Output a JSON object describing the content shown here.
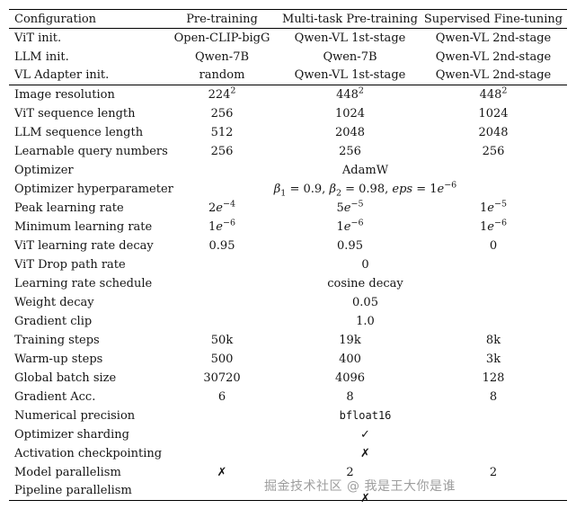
{
  "page": {
    "background": "#ffffff",
    "text_color": "#141414",
    "rule_color": "#000000"
  },
  "watermark": {
    "text": "掘金技术社区 @ 我是王大你是谁",
    "color": "#9e9e9e"
  },
  "table": {
    "headers": [
      "Configuration",
      "Pre-training",
      "Multi-task Pre-training",
      "Supervised Fine-tuning"
    ],
    "rows": [
      {
        "label": "ViT init.",
        "cells": [
          "Open-CLIP-bigG",
          "Qwen-VL 1st-stage",
          "Qwen-VL 2nd-stage"
        ]
      },
      {
        "label": "LLM init.",
        "cells": [
          "Qwen-7B",
          "Qwen-7B",
          "Qwen-VL 2nd-stage"
        ]
      },
      {
        "label": "VL Adapter init.",
        "cells": [
          "random",
          "Qwen-VL 1st-stage",
          "Qwen-VL 2nd-stage"
        ],
        "ruleAfter": true
      },
      {
        "label": "Image resolution",
        "cells": [
          [
            {
              "t": "224"
            },
            {
              "t": "2",
              "sup": true
            }
          ],
          [
            {
              "t": "448"
            },
            {
              "t": "2",
              "sup": true
            }
          ],
          [
            {
              "t": "448"
            },
            {
              "t": "2",
              "sup": true
            }
          ]
        ]
      },
      {
        "label": "ViT sequence length",
        "cells": [
          "256",
          "1024",
          "1024"
        ]
      },
      {
        "label": "LLM sequence length",
        "cells": [
          "512",
          "2048",
          "2048"
        ]
      },
      {
        "label": "Learnable query numbers",
        "cells": [
          "256",
          "256",
          "256"
        ]
      },
      {
        "label": "Optimizer",
        "span": "AdamW"
      },
      {
        "label": "Optimizer hyperparameter",
        "span": [
          {
            "t": "β",
            "i": true
          },
          {
            "t": "1",
            "sub": true
          },
          {
            "t": " = 0.9, "
          },
          {
            "t": "β",
            "i": true
          },
          {
            "t": "2",
            "sub": true
          },
          {
            "t": " = 0.98, "
          },
          {
            "t": "eps",
            "i": true
          },
          {
            "t": " = 1"
          },
          {
            "t": "e",
            "i": true
          },
          {
            "t": "−6",
            "sup": true
          }
        ]
      },
      {
        "label": "Peak learning rate",
        "cells": [
          [
            {
              "t": "2"
            },
            {
              "t": "e",
              "i": true
            },
            {
              "t": "−4",
              "sup": true
            }
          ],
          [
            {
              "t": "5"
            },
            {
              "t": "e",
              "i": true
            },
            {
              "t": "−5",
              "sup": true
            }
          ],
          [
            {
              "t": "1"
            },
            {
              "t": "e",
              "i": true
            },
            {
              "t": "−5",
              "sup": true
            }
          ]
        ]
      },
      {
        "label": "Minimum learning rate",
        "cells": [
          [
            {
              "t": "1"
            },
            {
              "t": "e",
              "i": true
            },
            {
              "t": "−6",
              "sup": true
            }
          ],
          [
            {
              "t": "1"
            },
            {
              "t": "e",
              "i": true
            },
            {
              "t": "−6",
              "sup": true
            }
          ],
          [
            {
              "t": "1"
            },
            {
              "t": "e",
              "i": true
            },
            {
              "t": "−6",
              "sup": true
            }
          ]
        ]
      },
      {
        "label": "ViT learning rate decay",
        "cells": [
          "0.95",
          "0.95",
          "0"
        ]
      },
      {
        "label": "ViT Drop path rate",
        "span": "0"
      },
      {
        "label": "Learning rate schedule",
        "span": "cosine decay"
      },
      {
        "label": "Weight decay",
        "span": "0.05"
      },
      {
        "label": "Gradient clip",
        "span": "1.0"
      },
      {
        "label": "Training steps",
        "cells": [
          "50k",
          "19k",
          "8k"
        ]
      },
      {
        "label": "Warm-up steps",
        "cells": [
          "500",
          "400",
          "3k"
        ]
      },
      {
        "label": "Global batch size",
        "cells": [
          "30720",
          "4096",
          "128"
        ]
      },
      {
        "label": "Gradient Acc.",
        "cells": [
          "6",
          "8",
          "8"
        ]
      },
      {
        "label": "Numerical precision",
        "span": [
          {
            "t": "bfloat16",
            "mono": true
          }
        ]
      },
      {
        "label": "Optimizer sharding",
        "span": "✓"
      },
      {
        "label": "Activation checkpointing",
        "span": "✗"
      },
      {
        "label": "Model parallelism",
        "cells": [
          "✗",
          "2",
          "2"
        ]
      },
      {
        "label": "Pipeline parallelism",
        "span": "✗",
        "shift": true
      }
    ]
  }
}
